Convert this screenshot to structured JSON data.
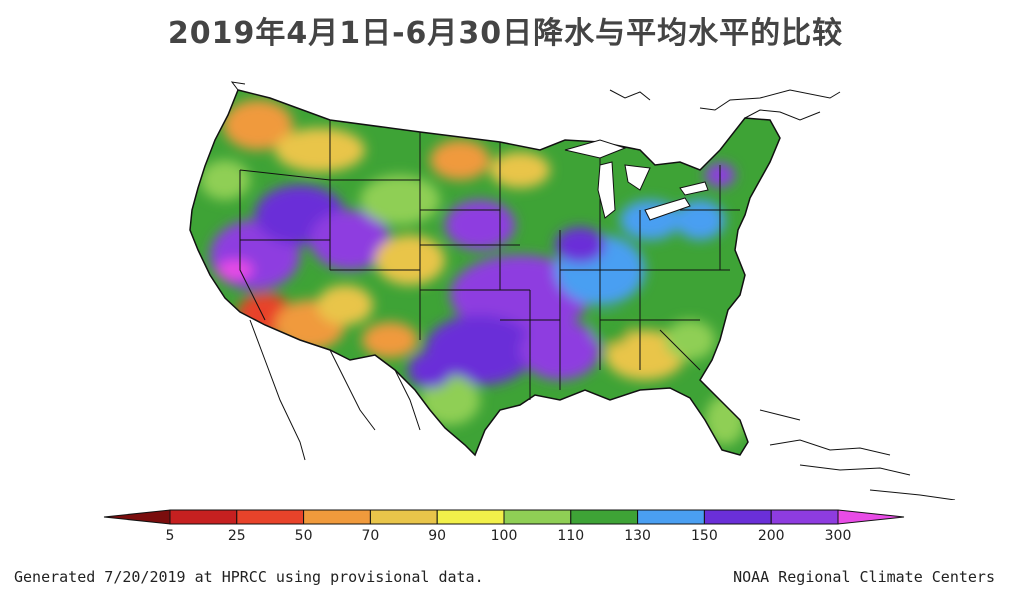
{
  "title": "2019年4月1日-6月30日降水与平均水平的比较",
  "legend": {
    "labels": [
      "5",
      "25",
      "50",
      "70",
      "90",
      "100",
      "110",
      "130",
      "150",
      "200",
      "300"
    ],
    "colors": [
      "#7a0d0d",
      "#c62020",
      "#e8432a",
      "#f09a3c",
      "#e9c54a",
      "#f2f04a",
      "#8fcf55",
      "#3ea336",
      "#4a9ff2",
      "#6a2fd8",
      "#8e3ce0",
      "#e84ce6"
    ]
  },
  "footer": {
    "left": "Generated 7/20/2019 at HPRCC using provisional data.",
    "right": "NOAA Regional Climate Centers"
  }
}
